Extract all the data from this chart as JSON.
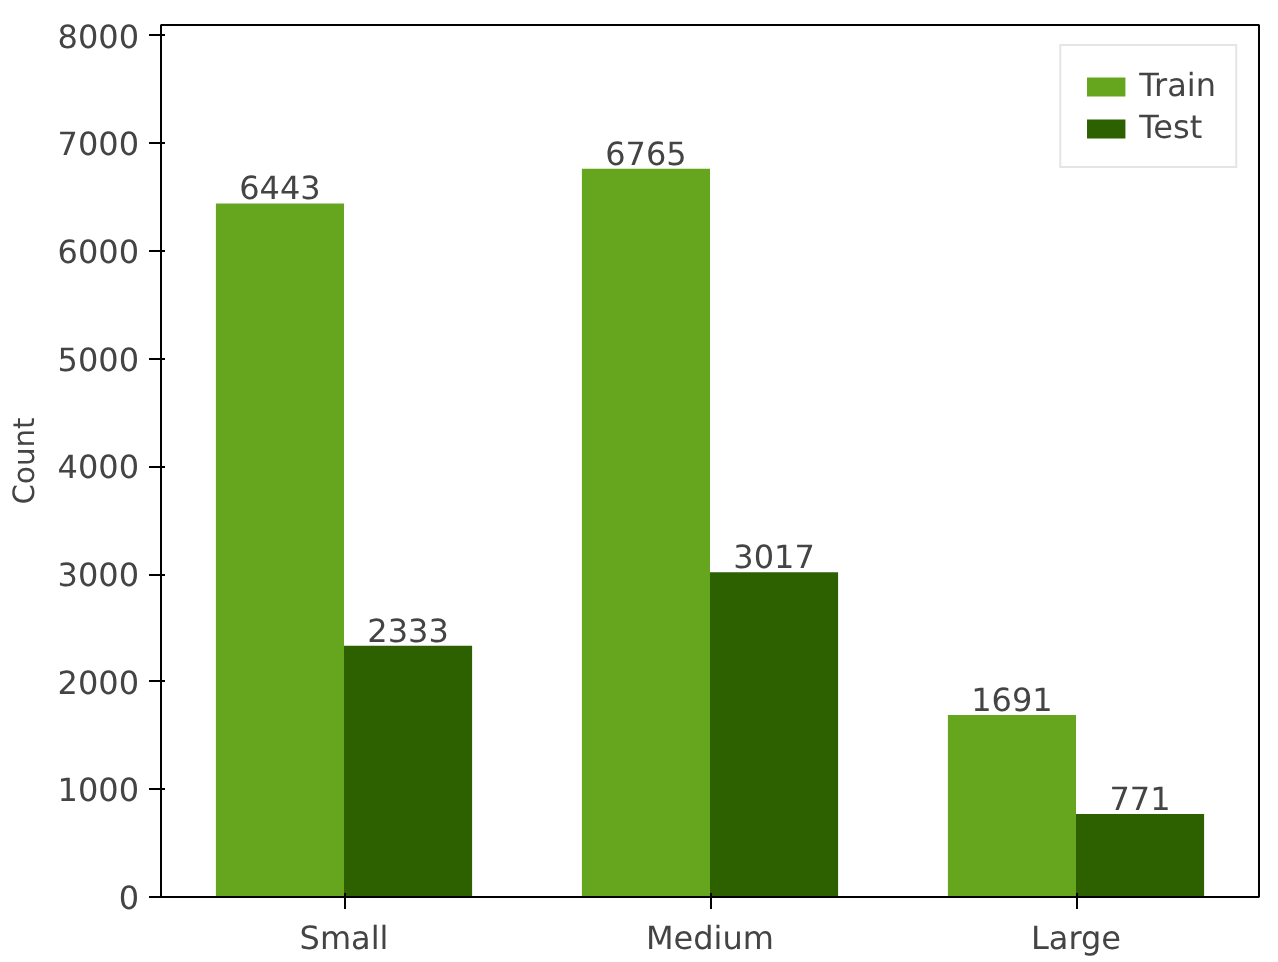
{
  "chart_data": {
    "type": "bar",
    "ylabel": "Count",
    "categories": [
      "Small",
      "Medium",
      "Large"
    ],
    "series": [
      {
        "name": "Train",
        "color": "#66a61e",
        "values": [
          6443,
          6765,
          1691
        ]
      },
      {
        "name": "Test",
        "color": "#2d6100",
        "values": [
          2333,
          3017,
          771
        ]
      }
    ],
    "ylim": [
      0,
      8100
    ],
    "yticks": [
      0,
      1000,
      2000,
      3000,
      4000,
      5000,
      6000,
      7000,
      8000
    ],
    "grid": false,
    "legend": "top right",
    "data_labels": true
  }
}
